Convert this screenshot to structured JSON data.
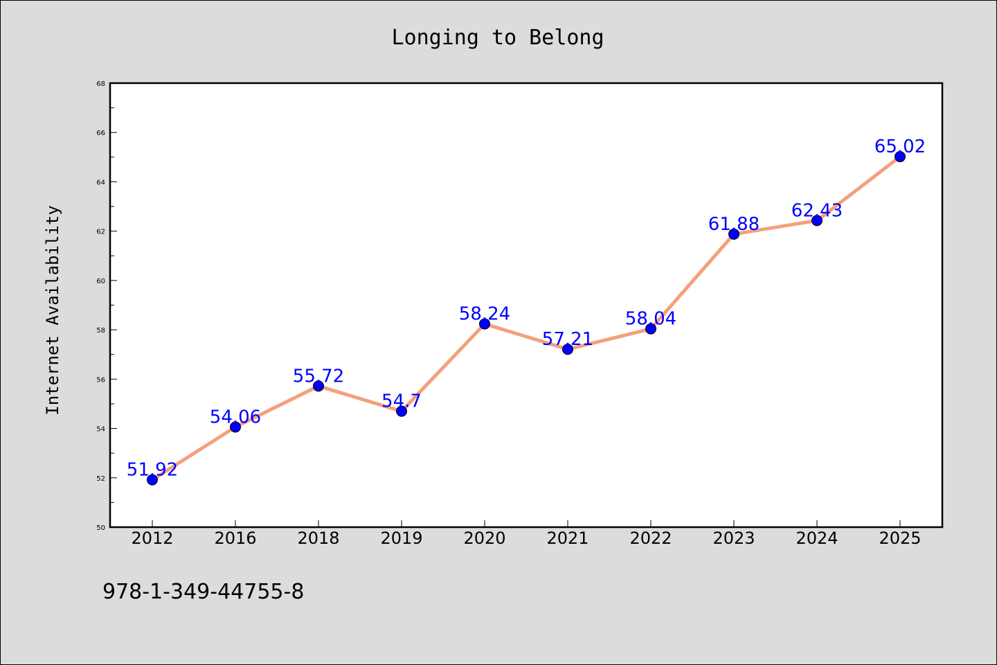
{
  "chart_data": {
    "type": "line",
    "title": "Longing to Belong",
    "xlabel": "",
    "ylabel": "Internet Availability",
    "categories": [
      "2012",
      "2016",
      "2018",
      "2019",
      "2020",
      "2021",
      "2022",
      "2023",
      "2024",
      "2025"
    ],
    "series": [
      {
        "values": [
          51.92,
          54.06,
          55.72,
          54.7,
          58.24,
          57.21,
          58.04,
          61.88,
          62.43,
          65.02
        ],
        "data_labels": [
          "51.92",
          "54.06",
          "55.72",
          "54.7",
          "58.24",
          "57.21",
          "58.04",
          "61.88",
          "62.43",
          "65.02"
        ],
        "line_color": "#f4a07e",
        "marker_color": "#0000ff"
      }
    ],
    "ylim": [
      50,
      68
    ],
    "yticks": [
      "50",
      "52",
      "54",
      "56",
      "58",
      "60",
      "62",
      "64",
      "66",
      "68"
    ],
    "grid": false,
    "legend": "none",
    "footer": "978-1-349-44755-8"
  }
}
